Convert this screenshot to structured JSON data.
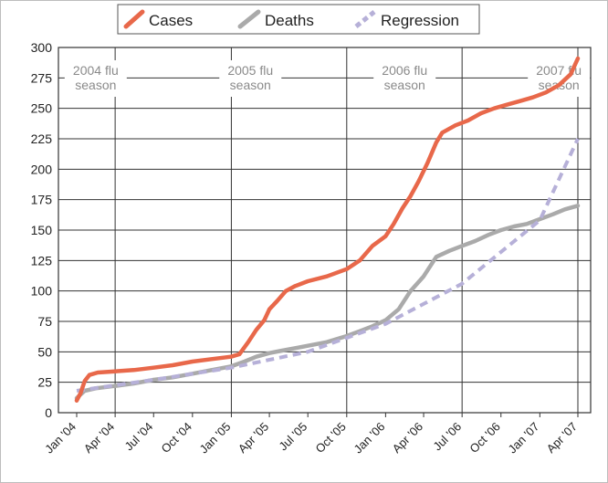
{
  "chart_data": {
    "type": "line",
    "x_unit": "date",
    "ylim": [
      0,
      300
    ],
    "yticks": [
      0,
      25,
      50,
      75,
      100,
      125,
      150,
      175,
      200,
      225,
      250,
      275,
      300
    ],
    "xticks": [
      {
        "date": "2004-01-01",
        "label": "Jan '04"
      },
      {
        "date": "2004-04-01",
        "label": "Apr '04"
      },
      {
        "date": "2004-07-01",
        "label": "Jul '04"
      },
      {
        "date": "2004-10-01",
        "label": "Oct '04"
      },
      {
        "date": "2005-01-01",
        "label": "Jan '05"
      },
      {
        "date": "2005-04-01",
        "label": "Apr '05"
      },
      {
        "date": "2005-07-01",
        "label": "Jul '05"
      },
      {
        "date": "2005-10-01",
        "label": "Oct '05"
      },
      {
        "date": "2006-01-01",
        "label": "Jan '06"
      },
      {
        "date": "2006-04-01",
        "label": "Apr '06"
      },
      {
        "date": "2006-07-01",
        "label": "Jul '06"
      },
      {
        "date": "2006-10-01",
        "label": "Oct '06"
      },
      {
        "date": "2007-01-01",
        "label": "Jan '07"
      },
      {
        "date": "2007-04-01",
        "label": "Apr '07"
      }
    ],
    "grid": true,
    "legend_position": "top",
    "annotations": [
      {
        "lines": [
          "2004 flu",
          "season"
        ],
        "date": "2004-02-15"
      },
      {
        "lines": [
          "2005 flu",
          "season"
        ],
        "date": "2005-02-15"
      },
      {
        "lines": [
          "2006 flu",
          "season"
        ],
        "date": "2006-02-15"
      },
      {
        "lines": [
          "2007 flu",
          "season"
        ],
        "date": "2007-02-15"
      }
    ],
    "series": [
      {
        "name": "Cases",
        "color": "#e8684a",
        "style": "solid",
        "points": [
          [
            "2004-01-01",
            10
          ],
          [
            "2004-01-10",
            16
          ],
          [
            "2004-01-20",
            26
          ],
          [
            "2004-01-31",
            31
          ],
          [
            "2004-02-20",
            33
          ],
          [
            "2004-04-01",
            34
          ],
          [
            "2004-05-15",
            35
          ],
          [
            "2004-07-01",
            37
          ],
          [
            "2004-08-15",
            39
          ],
          [
            "2004-10-01",
            42
          ],
          [
            "2004-11-15",
            44
          ],
          [
            "2004-12-31",
            46
          ],
          [
            "2005-01-20",
            48
          ],
          [
            "2005-02-10",
            58
          ],
          [
            "2005-03-01",
            68
          ],
          [
            "2005-03-20",
            76
          ],
          [
            "2005-04-01",
            85
          ],
          [
            "2005-04-20",
            92
          ],
          [
            "2005-05-10",
            100
          ],
          [
            "2005-06-01",
            104
          ],
          [
            "2005-07-01",
            108
          ],
          [
            "2005-08-15",
            112
          ],
          [
            "2005-10-01",
            118
          ],
          [
            "2005-11-01",
            125
          ],
          [
            "2005-12-01",
            137
          ],
          [
            "2006-01-01",
            145
          ],
          [
            "2006-01-20",
            155
          ],
          [
            "2006-02-10",
            168
          ],
          [
            "2006-03-01",
            178
          ],
          [
            "2006-03-20",
            190
          ],
          [
            "2006-04-10",
            205
          ],
          [
            "2006-05-01",
            222
          ],
          [
            "2006-05-15",
            230
          ],
          [
            "2006-06-15",
            236
          ],
          [
            "2006-07-15",
            240
          ],
          [
            "2006-08-15",
            246
          ],
          [
            "2006-09-15",
            250
          ],
          [
            "2006-10-15",
            253
          ],
          [
            "2006-11-15",
            256
          ],
          [
            "2006-12-15",
            259
          ],
          [
            "2007-01-15",
            263
          ],
          [
            "2007-02-15",
            269
          ],
          [
            "2007-03-15",
            278
          ],
          [
            "2007-04-01",
            291
          ]
        ]
      },
      {
        "name": "Deaths",
        "color": "#aaaaaa",
        "style": "solid",
        "points": [
          [
            "2004-01-01",
            12
          ],
          [
            "2004-01-20",
            18
          ],
          [
            "2004-02-15",
            20
          ],
          [
            "2004-04-01",
            22
          ],
          [
            "2004-05-15",
            24
          ],
          [
            "2004-07-01",
            27
          ],
          [
            "2004-08-15",
            29
          ],
          [
            "2004-10-01",
            32
          ],
          [
            "2004-11-15",
            35
          ],
          [
            "2004-12-31",
            38
          ],
          [
            "2005-02-01",
            42
          ],
          [
            "2005-03-01",
            46
          ],
          [
            "2005-04-01",
            49
          ],
          [
            "2005-05-01",
            51
          ],
          [
            "2005-06-01",
            53
          ],
          [
            "2005-07-01",
            55
          ],
          [
            "2005-08-15",
            58
          ],
          [
            "2005-10-01",
            63
          ],
          [
            "2005-11-01",
            67
          ],
          [
            "2005-12-01",
            71
          ],
          [
            "2006-01-01",
            76
          ],
          [
            "2006-02-01",
            85
          ],
          [
            "2006-03-01",
            100
          ],
          [
            "2006-04-01",
            112
          ],
          [
            "2006-05-01",
            128
          ],
          [
            "2006-06-01",
            133
          ],
          [
            "2006-07-01",
            137
          ],
          [
            "2006-08-01",
            141
          ],
          [
            "2006-09-01",
            146
          ],
          [
            "2006-10-01",
            150
          ],
          [
            "2006-11-01",
            153
          ],
          [
            "2006-12-01",
            155
          ],
          [
            "2007-01-01",
            159
          ],
          [
            "2007-02-01",
            163
          ],
          [
            "2007-03-01",
            167
          ],
          [
            "2007-04-01",
            170
          ]
        ]
      },
      {
        "name": "Regression",
        "color": "#b6b0d8",
        "style": "dashed",
        "points": [
          [
            "2004-01-01",
            18
          ],
          [
            "2004-07-01",
            27
          ],
          [
            "2005-01-01",
            37
          ],
          [
            "2005-07-01",
            50
          ],
          [
            "2006-01-01",
            73
          ],
          [
            "2006-07-01",
            106
          ],
          [
            "2007-01-01",
            158
          ],
          [
            "2007-04-01",
            225
          ]
        ]
      }
    ]
  }
}
